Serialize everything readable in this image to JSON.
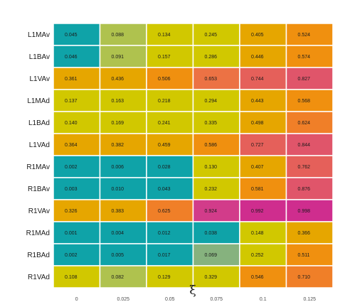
{
  "chart_data": {
    "type": "heatmap",
    "xlabel": "ξ",
    "ylabel": "",
    "columns": [
      "0",
      "0.025",
      "0.05",
      "0.075",
      "0.1",
      "0.125"
    ],
    "rows": [
      "L1MAv",
      "L1BAv",
      "L1VAv",
      "L1MAd",
      "L1BAd",
      "L1VAd",
      "R1MAv",
      "R1BAv",
      "R1VAv",
      "R1MAd",
      "R1BAd",
      "R1VAd"
    ],
    "values": [
      [
        "0.045",
        "0.088",
        "0.134",
        "0.245",
        "0.405",
        "0.524"
      ],
      [
        "0.046",
        "0.091",
        "0.157",
        "0.286",
        "0.446",
        "0.574"
      ],
      [
        "0.361",
        "0.436",
        "0.506",
        "0.653",
        "0.744",
        "0.827"
      ],
      [
        "0.137",
        "0.163",
        "0.218",
        "0.294",
        "0.443",
        "0.568"
      ],
      [
        "0.140",
        "0.169",
        "0.241",
        "0.335",
        "0.498",
        "0.624"
      ],
      [
        "0.364",
        "0.382",
        "0.459",
        "0.586",
        "0.727",
        "0.844"
      ],
      [
        "0.002",
        "0.006",
        "0.028",
        "0.130",
        "0.407",
        "0.762"
      ],
      [
        "0.003",
        "0.010",
        "0.043",
        "0.232",
        "0.581",
        "0.876"
      ],
      [
        "0.326",
        "0.383",
        "0.625",
        "0.924",
        "0.992",
        "0.998"
      ],
      [
        "0.001",
        "0.004",
        "0.012",
        "0.038",
        "0.148",
        "0.366"
      ],
      [
        "0.002",
        "0.005",
        "0.017",
        "0.069",
        "0.252",
        "0.511"
      ],
      [
        "0.108",
        "0.082",
        "0.129",
        "0.329",
        "0.546",
        "0.710"
      ]
    ],
    "cell_colors": [
      [
        "#0FA3A8",
        "#AFC24E",
        "#D1C800",
        "#D1C800",
        "#E6A600",
        "#F0900F"
      ],
      [
        "#0FA3A8",
        "#AFC24E",
        "#D1C800",
        "#D1C800",
        "#E6A600",
        "#F0900F"
      ],
      [
        "#E6A600",
        "#E6A600",
        "#F0900F",
        "#EC7244",
        "#E5605A",
        "#E0556A"
      ],
      [
        "#D1C800",
        "#D1C800",
        "#D1C800",
        "#D1C800",
        "#E6A600",
        "#F0900F"
      ],
      [
        "#D1C800",
        "#D1C800",
        "#D1C800",
        "#D1C800",
        "#E6A600",
        "#F07F28"
      ],
      [
        "#E6A600",
        "#E6A600",
        "#E6A600",
        "#F0900F",
        "#E5605A",
        "#E0556A"
      ],
      [
        "#0FA3A8",
        "#0FA3A8",
        "#0FA3A8",
        "#D1C800",
        "#E6A600",
        "#E5605A"
      ],
      [
        "#0FA3A8",
        "#0FA3A8",
        "#0FA3A8",
        "#D1C800",
        "#F0900F",
        "#E0556A"
      ],
      [
        "#E6A600",
        "#E6A600",
        "#F07F28",
        "#D23C8A",
        "#CF2D8E",
        "#CF2D8E"
      ],
      [
        "#0FA3A8",
        "#0FA3A8",
        "#0FA3A8",
        "#0FA3A8",
        "#D1C800",
        "#E6A600"
      ],
      [
        "#0FA3A8",
        "#0FA3A8",
        "#0FA3A8",
        "#86B27E",
        "#D1C800",
        "#F0900F"
      ],
      [
        "#D1C800",
        "#AFC24E",
        "#D1C800",
        "#D1C800",
        "#F0900F",
        "#F07F28"
      ]
    ],
    "grid": false,
    "legend": "none"
  }
}
